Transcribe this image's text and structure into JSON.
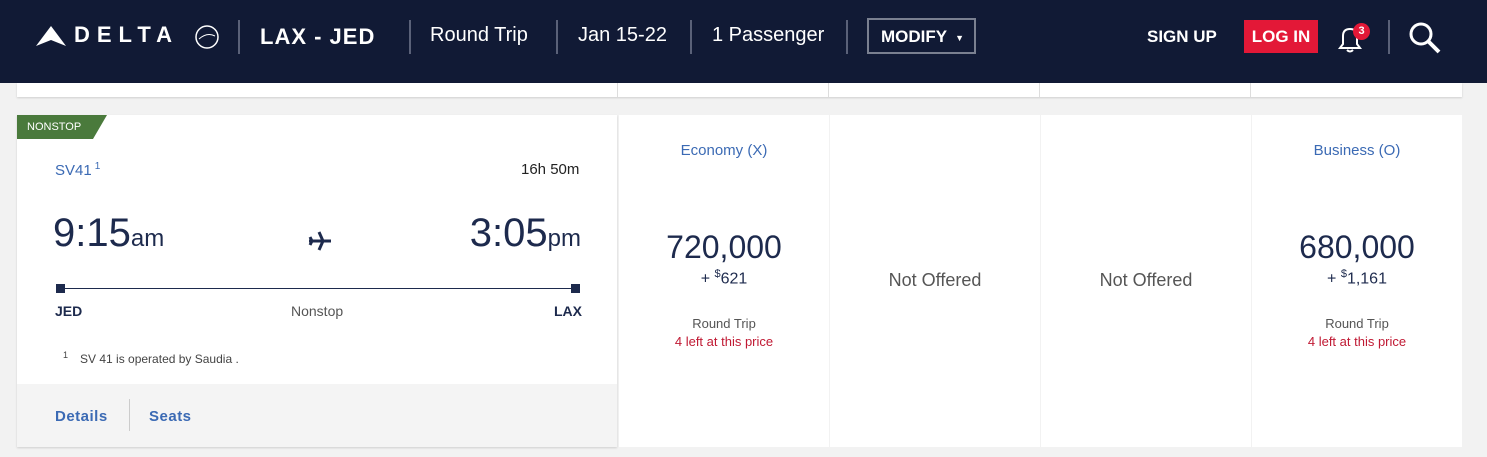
{
  "header": {
    "brand": "DELTA",
    "route": "LAX - JED",
    "trip_type": "Round Trip",
    "dates": "Jan 15-22",
    "passengers": "1 Passenger",
    "modify": "MODIFY",
    "sign_up": "SIGN UP",
    "log_in": "LOG IN",
    "notifications": 3
  },
  "flight": {
    "badge": "NONSTOP",
    "number": "SV41",
    "footnote_mark": "1",
    "duration": "16h 50m",
    "depart_time": "9:15",
    "depart_suffix": "am",
    "arrive_time": "3:05",
    "arrive_suffix": "pm",
    "origin": "JED",
    "stops": "Nonstop",
    "destination": "LAX",
    "footnote": "SV 41 is operated by Saudia .",
    "links": [
      "Details",
      "Seats"
    ]
  },
  "fares": [
    {
      "cabin": "Economy (X)",
      "miles": "720,000",
      "plus": "+",
      "currency": "$",
      "tax": "621",
      "trip": "Round Trip",
      "availability": "4 left at this price"
    },
    {
      "status": "Not Offered"
    },
    {
      "status": "Not Offered"
    },
    {
      "cabin": "Business (O)",
      "miles": "680,000",
      "plus": "+",
      "currency": "$",
      "tax": "1,161",
      "trip": "Round Trip",
      "availability": "4 left at this price"
    }
  ]
}
